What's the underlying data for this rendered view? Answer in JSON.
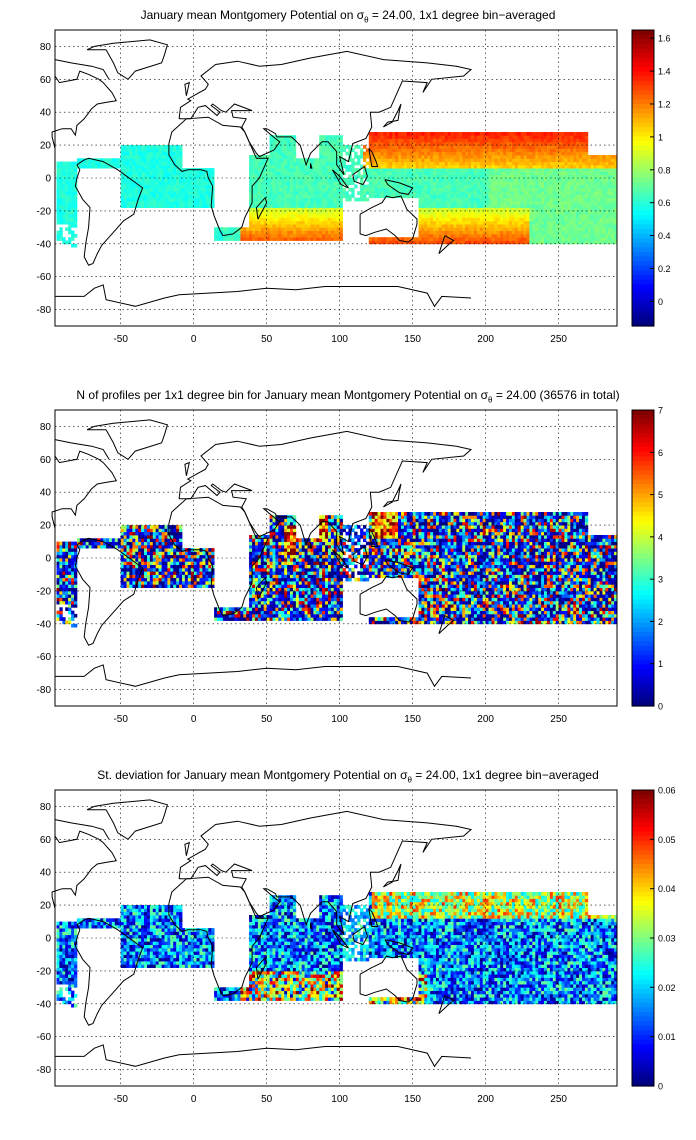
{
  "panels": [
    {
      "title_prefix": "January mean Montgomery Potential on ",
      "sigma_symbol": "σ",
      "sigma_sub": "θ",
      "title_suffix": " = 24.00, 1x1 degree bin−averaged",
      "xticks": [
        "-50",
        "0",
        "50",
        "100",
        "150",
        "200",
        "250"
      ],
      "yticks": [
        "80",
        "60",
        "40",
        "20",
        "0",
        "-20",
        "-40",
        "-60",
        "-80"
      ],
      "colorbar_ticks": [
        "1.6",
        "1.4",
        "1.2",
        "1",
        "0.8",
        "0.6",
        "0.4",
        "0.2",
        "0"
      ],
      "colorbar_range": [
        -0.15,
        1.65
      ]
    },
    {
      "title_prefix": "N of profiles per 1x1 degree bin for January mean Montgomery Potential on ",
      "sigma_symbol": "σ",
      "sigma_sub": "θ",
      "title_suffix": " = 24.00 (36576 in total)",
      "xticks": [
        "-50",
        "0",
        "50",
        "100",
        "150",
        "200",
        "250"
      ],
      "yticks": [
        "80",
        "60",
        "40",
        "20",
        "0",
        "-20",
        "-40",
        "-60",
        "-80"
      ],
      "colorbar_ticks": [
        "7",
        "6",
        "5",
        "4",
        "3",
        "2",
        "1",
        "0"
      ],
      "colorbar_range": [
        0,
        7
      ]
    },
    {
      "title_prefix": "St. deviation for January mean Montgomery Potential on ",
      "sigma_symbol": "σ",
      "sigma_sub": "θ",
      "title_suffix": " = 24.00, 1x1 degree bin−averaged",
      "xticks": [
        "-50",
        "0",
        "50",
        "100",
        "150",
        "200",
        "250"
      ],
      "yticks": [
        "80",
        "60",
        "40",
        "20",
        "0",
        "-20",
        "-40",
        "-60",
        "-80"
      ],
      "colorbar_ticks": [
        "0.06",
        "0.05",
        "0.04",
        "0.03",
        "0.02",
        "0.01",
        "0"
      ],
      "colorbar_range": [
        0,
        0.06
      ]
    }
  ],
  "map_extent": {
    "lon": [
      -95,
      290
    ],
    "lat": [
      -90,
      90
    ]
  },
  "colormap": "jet"
}
